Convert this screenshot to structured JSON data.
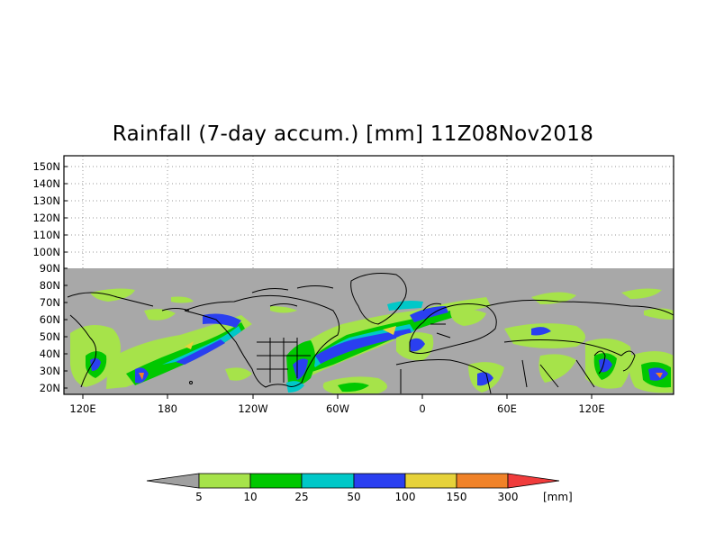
{
  "title": "Rainfall (7-day accum.) [mm] 11Z08Nov2018",
  "lat_labels": [
    "150N",
    "140N",
    "130N",
    "120N",
    "110N",
    "100N",
    "90N",
    "80N",
    "70N",
    "60N",
    "50N",
    "40N",
    "30N",
    "20N"
  ],
  "lon_labels": [
    "120E",
    "180",
    "120W",
    "60W",
    "0",
    "60E",
    "120E"
  ],
  "colorbar": {
    "unit": "[mm]",
    "levels": [
      "5",
      "10",
      "25",
      "50",
      "100",
      "150",
      "300"
    ],
    "colors": [
      "#a0a0a0",
      "#a6e34a",
      "#00c800",
      "#00c8c8",
      "#2a3ff0",
      "#e6d23a",
      "#f08228",
      "#f03c3c"
    ]
  },
  "map_colors": {
    "no_data": "#ffffff",
    "land_mask": "#a8a8a8",
    "coastline": "#000000"
  }
}
